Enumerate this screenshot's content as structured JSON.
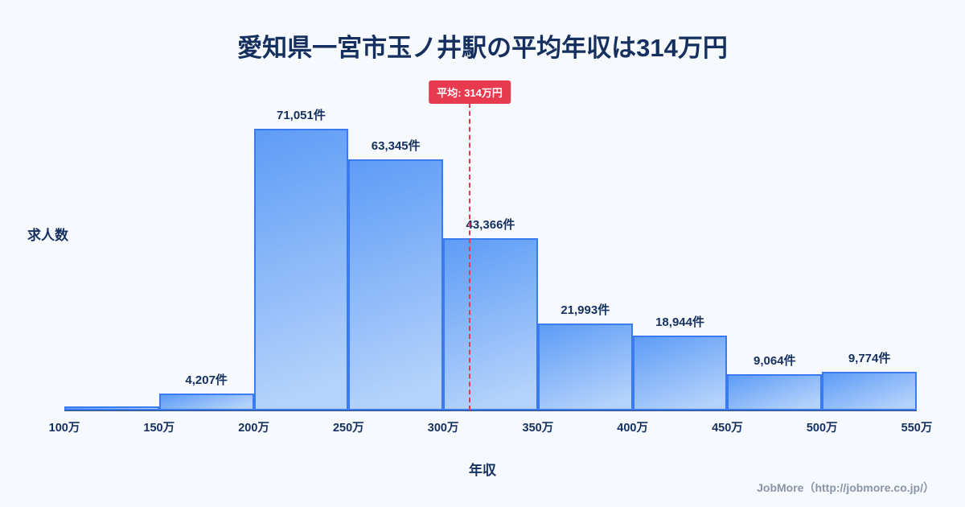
{
  "page": {
    "title": "愛知県一宮市玉ノ井駅の平均年収は314万円",
    "footer": "JobMore（http://jobmore.co.jp/）"
  },
  "chart_data": {
    "type": "bar",
    "title": "愛知県一宮市玉ノ井駅の平均年収は314万円",
    "xlabel": "年収",
    "ylabel": "求人数",
    "x_ticks": [
      "100万",
      "150万",
      "200万",
      "250万",
      "300万",
      "350万",
      "400万",
      "450万",
      "500万",
      "550万"
    ],
    "axis_range": {
      "x_min": 100,
      "x_max": 550
    },
    "bars": [
      {
        "range": "100万-150万",
        "value": null,
        "label": ""
      },
      {
        "range": "150万-200万",
        "value": 4207,
        "label": "4,207件"
      },
      {
        "range": "200万-250万",
        "value": 71051,
        "label": "71,051件"
      },
      {
        "range": "250万-300万",
        "value": 63345,
        "label": "63,345件"
      },
      {
        "range": "300万-350万",
        "value": 43366,
        "label": "43,366件"
      },
      {
        "range": "350万-400万",
        "value": 21993,
        "label": "21,993件"
      },
      {
        "range": "400万-450万",
        "value": 18944,
        "label": "18,944件"
      },
      {
        "range": "450万-500万",
        "value": 9064,
        "label": "9,064件"
      },
      {
        "range": "500万-550万",
        "value": 9774,
        "label": "9,774件"
      }
    ],
    "average_line": {
      "value": 314,
      "label": "平均: 314万円"
    },
    "legend": "none",
    "grid": false
  },
  "colors": {
    "background": "#f6f9fe",
    "title_text": "#15305e",
    "bar_fill_top": "#5e9cf6",
    "bar_fill_bottom": "#b4d2fb",
    "bar_border": "#3b7bf2",
    "average_line": "#e73a4e",
    "badge_bg": "#e73a4e",
    "badge_text": "#ffffff",
    "footer_text": "#8b94a5",
    "axis_line": "#2c4a7c"
  }
}
